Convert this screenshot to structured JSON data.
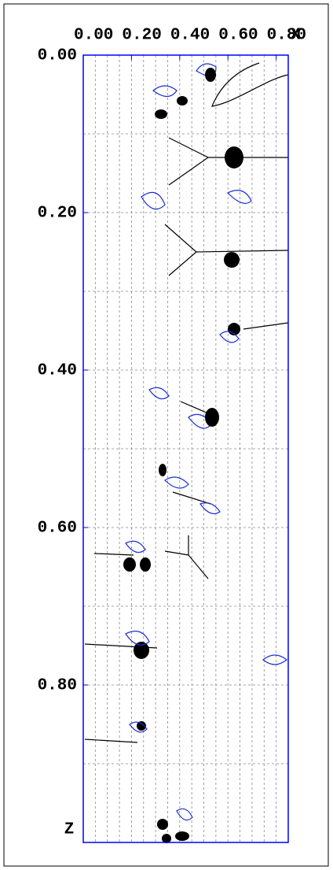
{
  "chart_data": {
    "type": "contour",
    "xlabel": "X",
    "ylabel": "Z",
    "xlim": [
      0,
      0.85
    ],
    "ylim": [
      0,
      1.0
    ],
    "xticks": [
      {
        "value": 0,
        "label": "0.00"
      },
      {
        "value": 0.2,
        "label": "0.20"
      },
      {
        "value": 0.4,
        "label": "0.40"
      },
      {
        "value": 0.6,
        "label": "0.60"
      },
      {
        "value": 0.8,
        "label": "0.80"
      }
    ],
    "yticks": [
      {
        "value": 0,
        "label": "0.00"
      },
      {
        "value": 0.2,
        "label": "0.20"
      },
      {
        "value": 0.4,
        "label": "0.40"
      },
      {
        "value": 0.6,
        "label": "0.60"
      },
      {
        "value": 0.8,
        "label": "0.80"
      }
    ],
    "xgrid": [
      0.05,
      0.1,
      0.15,
      0.2,
      0.25,
      0.3,
      0.35,
      0.4,
      0.45,
      0.5,
      0.55,
      0.6,
      0.65,
      0.7,
      0.75,
      0.8
    ],
    "ygrid": [
      0.1,
      0.2,
      0.3,
      0.4,
      0.5,
      0.6,
      0.7,
      0.8,
      0.9
    ],
    "grid": true,
    "frame_color": "#0000ff"
  }
}
